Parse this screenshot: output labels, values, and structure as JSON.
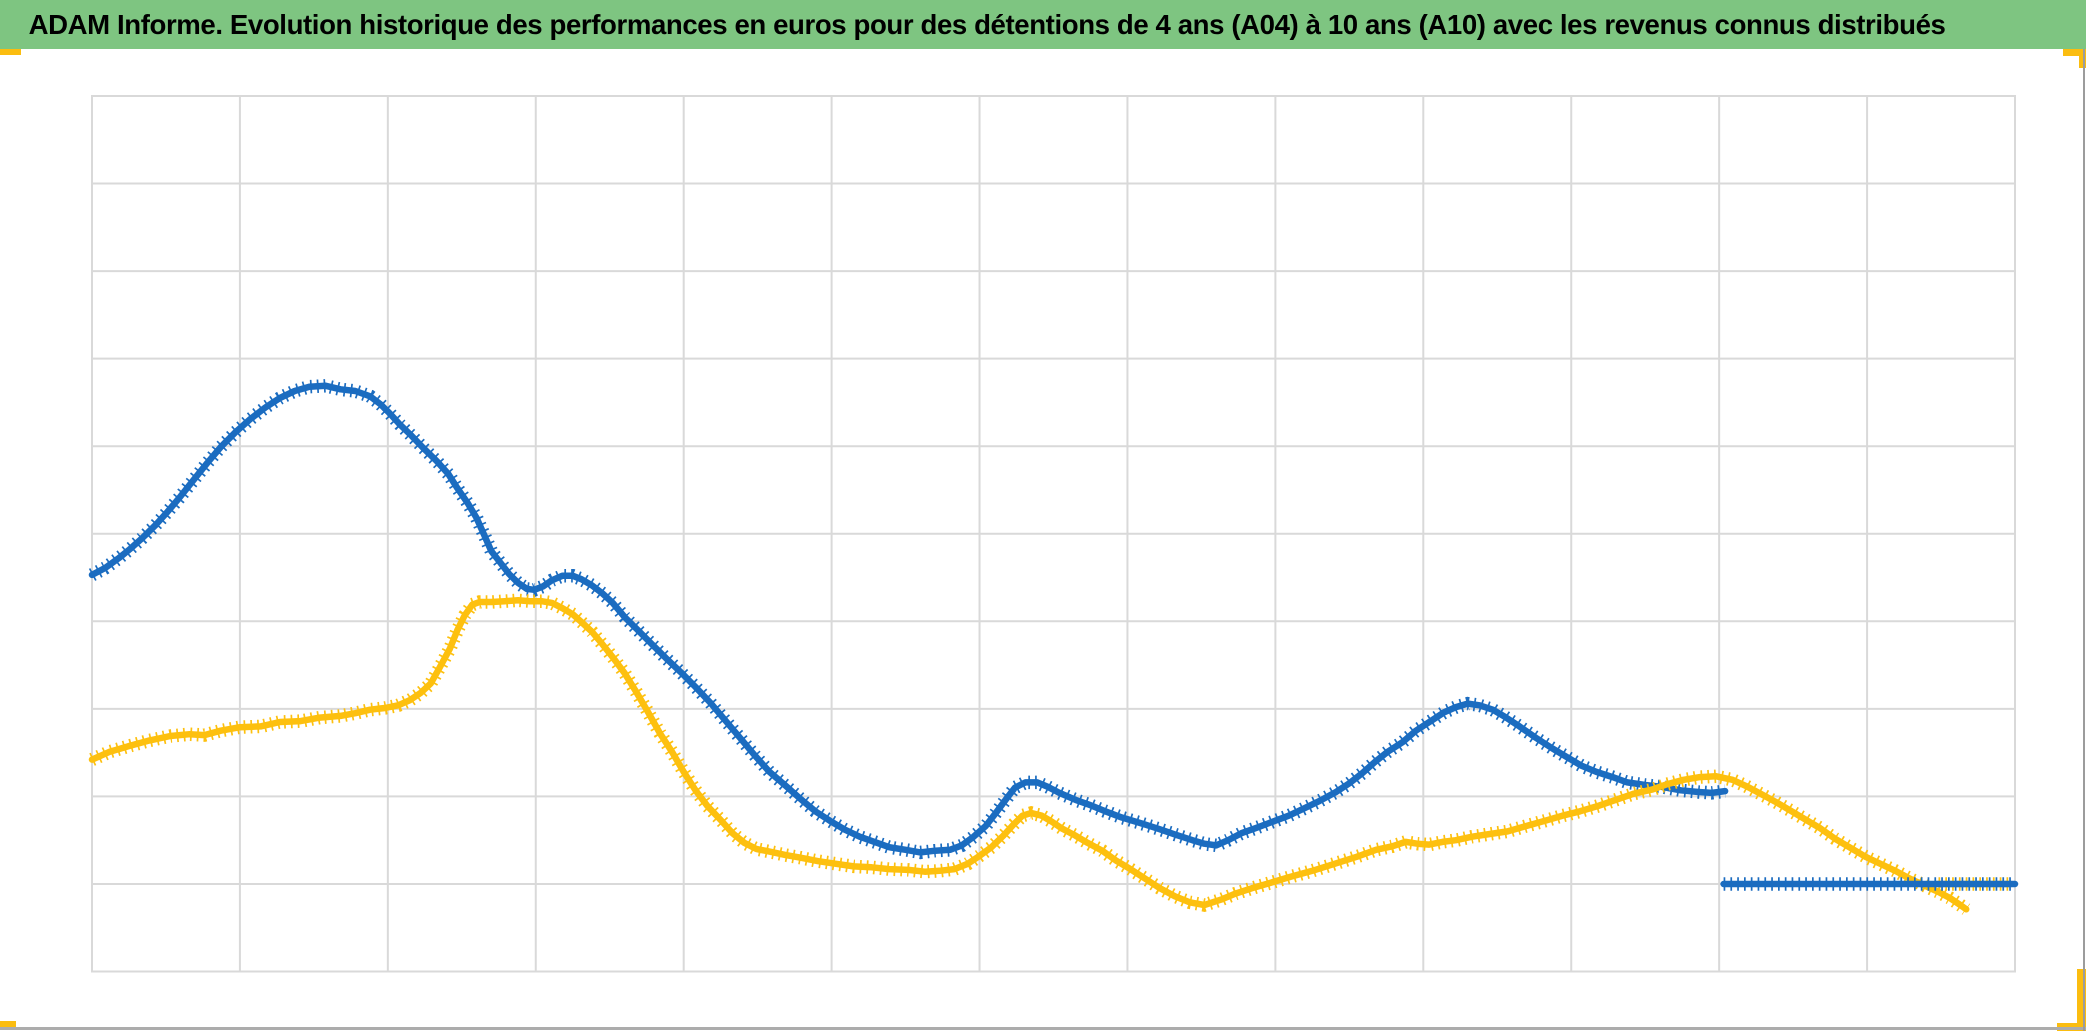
{
  "header": {
    "title": "ADAM Informe. Evolution historique des performances en euros pour des détentions de 4 ans (A04) à 10 ans (A10) avec les revenus connus distribués",
    "bg_color": "#7EC581",
    "text_color": "#000000"
  },
  "decorations": {
    "range_handle_color": "#FBBD10",
    "divider_bottom_color": "#ACACAC",
    "divider_right_color": "#9C9C9C"
  },
  "chart_data": {
    "type": "line",
    "title": "",
    "xlabel": "",
    "ylabel": "",
    "tick_labels_visible": false,
    "legend_position": "none",
    "grid_on": true,
    "grid_color": "#D9D9D9",
    "plot_border_color": "#D9D9D9",
    "x_range_grid_units": [
      0,
      13
    ],
    "y_range_grid_units": [
      0,
      10
    ],
    "marker_style": "dense-plus-markers",
    "series": [
      {
        "name": "series-blue",
        "color": "#1B6CC0",
        "points": [
          [
            0,
            4.53
          ],
          [
            0.09,
            4.61
          ],
          [
            0.18,
            4.72
          ],
          [
            0.26,
            4.83
          ],
          [
            0.34,
            4.95
          ],
          [
            0.43,
            5.1
          ],
          [
            0.51,
            5.25
          ],
          [
            0.59,
            5.41
          ],
          [
            0.68,
            5.6
          ],
          [
            0.78,
            5.81
          ],
          [
            0.87,
            5.99
          ],
          [
            0.97,
            6.16
          ],
          [
            1.07,
            6.31
          ],
          [
            1.17,
            6.44
          ],
          [
            1.27,
            6.55
          ],
          [
            1.37,
            6.63
          ],
          [
            1.47,
            6.68
          ],
          [
            1.58,
            6.69
          ],
          [
            1.68,
            6.65
          ],
          [
            1.78,
            6.63
          ],
          [
            1.88,
            6.57
          ],
          [
            1.95,
            6.48
          ],
          [
            2.01,
            6.38
          ],
          [
            2.08,
            6.25
          ],
          [
            2.16,
            6.12
          ],
          [
            2.24,
            5.98
          ],
          [
            2.33,
            5.83
          ],
          [
            2.41,
            5.68
          ],
          [
            2.47,
            5.52
          ],
          [
            2.54,
            5.35
          ],
          [
            2.6,
            5.18
          ],
          [
            2.65,
            4.99
          ],
          [
            2.7,
            4.8
          ],
          [
            2.76,
            4.67
          ],
          [
            2.82,
            4.54
          ],
          [
            2.88,
            4.44
          ],
          [
            2.94,
            4.37
          ],
          [
            2.99,
            4.36
          ],
          [
            3.05,
            4.4
          ],
          [
            3.11,
            4.47
          ],
          [
            3.18,
            4.52
          ],
          [
            3.25,
            4.52
          ],
          [
            3.31,
            4.48
          ],
          [
            3.38,
            4.41
          ],
          [
            3.45,
            4.32
          ],
          [
            3.52,
            4.21
          ],
          [
            3.6,
            4.05
          ],
          [
            3.69,
            3.9
          ],
          [
            3.79,
            3.73
          ],
          [
            3.88,
            3.58
          ],
          [
            3.98,
            3.42
          ],
          [
            4.08,
            3.25
          ],
          [
            4.18,
            3.07
          ],
          [
            4.28,
            2.87
          ],
          [
            4.38,
            2.67
          ],
          [
            4.48,
            2.47
          ],
          [
            4.58,
            2.28
          ],
          [
            4.69,
            2.12
          ],
          [
            4.79,
            1.97
          ],
          [
            4.89,
            1.83
          ],
          [
            4.99,
            1.72
          ],
          [
            5.09,
            1.62
          ],
          [
            5.19,
            1.54
          ],
          [
            5.29,
            1.48
          ],
          [
            5.39,
            1.42
          ],
          [
            5.5,
            1.39
          ],
          [
            5.6,
            1.36
          ],
          [
            5.7,
            1.38
          ],
          [
            5.8,
            1.39
          ],
          [
            5.88,
            1.44
          ],
          [
            5.96,
            1.54
          ],
          [
            6.04,
            1.66
          ],
          [
            6.11,
            1.81
          ],
          [
            6.18,
            1.97
          ],
          [
            6.24,
            2.1
          ],
          [
            6.31,
            2.16
          ],
          [
            6.39,
            2.16
          ],
          [
            6.46,
            2.11
          ],
          [
            6.54,
            2.04
          ],
          [
            6.65,
            1.96
          ],
          [
            6.75,
            1.9
          ],
          [
            6.85,
            1.83
          ],
          [
            6.96,
            1.76
          ],
          [
            7.08,
            1.7
          ],
          [
            7.21,
            1.63
          ],
          [
            7.33,
            1.56
          ],
          [
            7.44,
            1.5
          ],
          [
            7.52,
            1.46
          ],
          [
            7.6,
            1.44
          ],
          [
            7.68,
            1.5
          ],
          [
            7.77,
            1.58
          ],
          [
            7.87,
            1.64
          ],
          [
            7.98,
            1.71
          ],
          [
            8.09,
            1.78
          ],
          [
            8.19,
            1.86
          ],
          [
            8.3,
            1.95
          ],
          [
            8.41,
            2.05
          ],
          [
            8.5,
            2.15
          ],
          [
            8.59,
            2.27
          ],
          [
            8.67,
            2.39
          ],
          [
            8.76,
            2.51
          ],
          [
            8.86,
            2.62
          ],
          [
            8.95,
            2.75
          ],
          [
            9.05,
            2.86
          ],
          [
            9.14,
            2.96
          ],
          [
            9.22,
            3.02
          ],
          [
            9.3,
            3.06
          ],
          [
            9.38,
            3.04
          ],
          [
            9.47,
            2.99
          ],
          [
            9.55,
            2.91
          ],
          [
            9.65,
            2.8
          ],
          [
            9.76,
            2.67
          ],
          [
            9.87,
            2.55
          ],
          [
            9.98,
            2.44
          ],
          [
            10.07,
            2.35
          ],
          [
            10.17,
            2.28
          ],
          [
            10.28,
            2.22
          ],
          [
            10.38,
            2.16
          ],
          [
            10.5,
            2.13
          ],
          [
            10.61,
            2.11
          ],
          [
            10.74,
            2.07
          ],
          [
            10.86,
            2.05
          ],
          [
            10.95,
            2.04
          ],
          [
            11.04,
            2.06
          ]
        ]
      },
      {
        "name": "series-gold",
        "color": "#FDC00F",
        "points": [
          [
            0,
            2.42
          ],
          [
            0.12,
            2.51
          ],
          [
            0.26,
            2.58
          ],
          [
            0.39,
            2.64
          ],
          [
            0.53,
            2.69
          ],
          [
            0.66,
            2.71
          ],
          [
            0.76,
            2.7
          ],
          [
            0.87,
            2.75
          ],
          [
            1,
            2.79
          ],
          [
            1.14,
            2.8
          ],
          [
            1.27,
            2.85
          ],
          [
            1.41,
            2.86
          ],
          [
            1.54,
            2.9
          ],
          [
            1.68,
            2.92
          ],
          [
            1.78,
            2.95
          ],
          [
            1.88,
            2.99
          ],
          [
            1.98,
            3.01
          ],
          [
            2.07,
            3.04
          ],
          [
            2.15,
            3.1
          ],
          [
            2.22,
            3.18
          ],
          [
            2.29,
            3.29
          ],
          [
            2.35,
            3.47
          ],
          [
            2.42,
            3.69
          ],
          [
            2.47,
            3.9
          ],
          [
            2.52,
            4.07
          ],
          [
            2.57,
            4.19
          ],
          [
            2.62,
            4.22
          ],
          [
            2.7,
            4.22
          ],
          [
            2.79,
            4.23
          ],
          [
            2.88,
            4.24
          ],
          [
            2.96,
            4.23
          ],
          [
            3.04,
            4.23
          ],
          [
            3.11,
            4.21
          ],
          [
            3.18,
            4.15
          ],
          [
            3.25,
            4.08
          ],
          [
            3.31,
            3.99
          ],
          [
            3.38,
            3.88
          ],
          [
            3.45,
            3.74
          ],
          [
            3.52,
            3.59
          ],
          [
            3.6,
            3.41
          ],
          [
            3.68,
            3.19
          ],
          [
            3.76,
            2.96
          ],
          [
            3.84,
            2.72
          ],
          [
            3.92,
            2.51
          ],
          [
            4,
            2.28
          ],
          [
            4.08,
            2.07
          ],
          [
            4.16,
            1.89
          ],
          [
            4.25,
            1.73
          ],
          [
            4.33,
            1.58
          ],
          [
            4.41,
            1.47
          ],
          [
            4.49,
            1.4
          ],
          [
            4.58,
            1.37
          ],
          [
            4.69,
            1.33
          ],
          [
            4.79,
            1.3
          ],
          [
            4.91,
            1.26
          ],
          [
            5.03,
            1.23
          ],
          [
            5.15,
            1.2
          ],
          [
            5.27,
            1.19
          ],
          [
            5.39,
            1.17
          ],
          [
            5.52,
            1.16
          ],
          [
            5.63,
            1.14
          ],
          [
            5.73,
            1.15
          ],
          [
            5.83,
            1.17
          ],
          [
            5.92,
            1.23
          ],
          [
            6,
            1.32
          ],
          [
            6.08,
            1.42
          ],
          [
            6.16,
            1.55
          ],
          [
            6.23,
            1.68
          ],
          [
            6.29,
            1.78
          ],
          [
            6.35,
            1.81
          ],
          [
            6.42,
            1.78
          ],
          [
            6.49,
            1.71
          ],
          [
            6.56,
            1.63
          ],
          [
            6.65,
            1.55
          ],
          [
            6.73,
            1.47
          ],
          [
            6.83,
            1.38
          ],
          [
            6.92,
            1.27
          ],
          [
            7.02,
            1.17
          ],
          [
            7.12,
            1.06
          ],
          [
            7.22,
            0.95
          ],
          [
            7.32,
            0.86
          ],
          [
            7.42,
            0.79
          ],
          [
            7.52,
            0.76
          ],
          [
            7.63,
            0.82
          ],
          [
            7.73,
            0.89
          ],
          [
            7.84,
            0.95
          ],
          [
            7.96,
            1.01
          ],
          [
            8.1,
            1.08
          ],
          [
            8.25,
            1.15
          ],
          [
            8.4,
            1.23
          ],
          [
            8.55,
            1.31
          ],
          [
            8.68,
            1.39
          ],
          [
            8.79,
            1.43
          ],
          [
            8.88,
            1.48
          ],
          [
            8.96,
            1.46
          ],
          [
            9.04,
            1.45
          ],
          [
            9.13,
            1.48
          ],
          [
            9.22,
            1.5
          ],
          [
            9.33,
            1.54
          ],
          [
            9.45,
            1.57
          ],
          [
            9.57,
            1.6
          ],
          [
            9.69,
            1.66
          ],
          [
            9.82,
            1.72
          ],
          [
            9.94,
            1.78
          ],
          [
            10.06,
            1.83
          ],
          [
            10.18,
            1.89
          ],
          [
            10.3,
            1.96
          ],
          [
            10.42,
            2.03
          ],
          [
            10.55,
            2.08
          ],
          [
            10.65,
            2.14
          ],
          [
            10.76,
            2.19
          ],
          [
            10.87,
            2.22
          ],
          [
            10.98,
            2.23
          ],
          [
            11.09,
            2.19
          ],
          [
            11.18,
            2.12
          ],
          [
            11.28,
            2.03
          ],
          [
            11.38,
            1.94
          ],
          [
            11.48,
            1.84
          ],
          [
            11.58,
            1.74
          ],
          [
            11.68,
            1.64
          ],
          [
            11.78,
            1.52
          ],
          [
            11.89,
            1.41
          ],
          [
            11.99,
            1.31
          ],
          [
            12.09,
            1.23
          ],
          [
            12.19,
            1.15
          ],
          [
            12.29,
            1.06
          ],
          [
            12.39,
            0.98
          ],
          [
            12.48,
            0.91
          ],
          [
            12.56,
            0.84
          ],
          [
            12.63,
            0.76
          ],
          [
            12.67,
            0.71
          ]
        ]
      },
      {
        "name": "series-gold-flat",
        "color": "#FDC00F",
        "points": [
          [
            12.46,
            1
          ],
          [
            12.97,
            1
          ]
        ]
      },
      {
        "name": "series-blue-flat",
        "color": "#1B6CC0",
        "points": [
          [
            11.03,
            1
          ],
          [
            13,
            1
          ]
        ]
      }
    ]
  }
}
